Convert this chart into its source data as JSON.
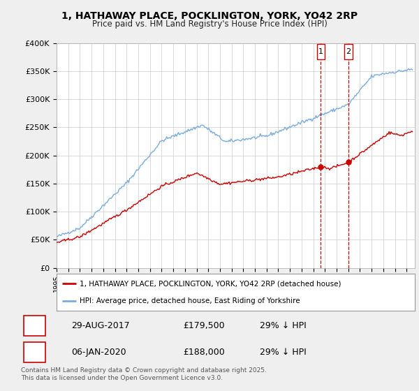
{
  "title_line1": "1, HATHAWAY PLACE, POCKLINGTON, YORK, YO42 2RP",
  "title_line2": "Price paid vs. HM Land Registry's House Price Index (HPI)",
  "ylim": [
    0,
    400000
  ],
  "xlim_start": 1995.0,
  "xlim_end": 2025.7,
  "red_color": "#cc0000",
  "blue_color": "#7aace0",
  "vline1_x": 2017.65,
  "vline2_x": 2020.02,
  "vline_color": "#cc0000",
  "marker1_label": "1",
  "marker2_label": "2",
  "legend_label_red": "1, HATHAWAY PLACE, POCKLINGTON, YORK, YO42 2RP (detached house)",
  "legend_label_blue": "HPI: Average price, detached house, East Riding of Yorkshire",
  "table_rows": [
    {
      "num": "1",
      "date": "29-AUG-2017",
      "price": "£179,500",
      "note": "29% ↓ HPI"
    },
    {
      "num": "2",
      "date": "06-JAN-2020",
      "price": "£188,000",
      "note": "29% ↓ HPI"
    }
  ],
  "footer": "Contains HM Land Registry data © Crown copyright and database right 2025.\nThis data is licensed under the Open Government Licence v3.0.",
  "background_color": "#efefef",
  "plot_bg_color": "#ffffff",
  "grid_color": "#cccccc",
  "yticks": [
    0,
    50000,
    100000,
    150000,
    200000,
    250000,
    300000,
    350000,
    400000
  ],
  "ylabels": [
    "£0",
    "£50K",
    "£100K",
    "£150K",
    "£200K",
    "£250K",
    "£300K",
    "£350K",
    "£400K"
  ]
}
